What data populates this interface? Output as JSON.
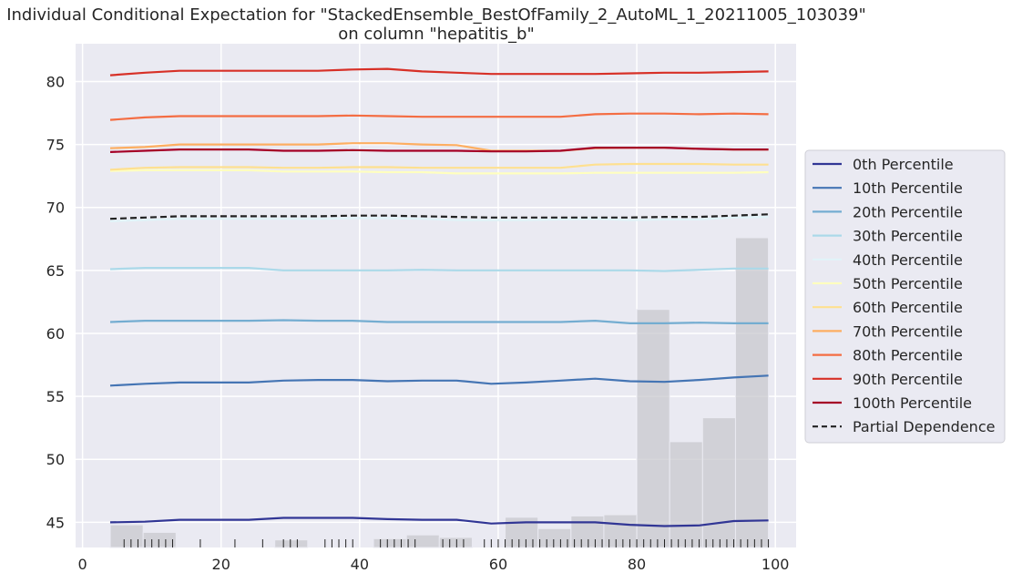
{
  "chart_data": {
    "type": "line",
    "title": "Individual Conditional Expectation for \"StackedEnsemble_BestOfFamily_2_AutoML_1_20211005_103039\"",
    "subtitle": "on column \"hepatitis_b\"",
    "xlim": [
      -1,
      103
    ],
    "ylim": [
      43,
      83
    ],
    "x_ticks": [
      0,
      20,
      40,
      60,
      80,
      100
    ],
    "y_ticks": [
      45,
      50,
      55,
      60,
      65,
      70,
      75,
      80
    ],
    "grid": true,
    "legend_position": "right",
    "background": "#eaeaf2",
    "x": [
      4,
      9,
      14,
      19,
      24,
      29,
      34,
      39,
      44,
      49,
      54,
      59,
      64,
      69,
      74,
      79,
      84,
      89,
      94,
      99
    ],
    "series": [
      {
        "name": "0th Percentile",
        "color": "#313695",
        "style": "solid",
        "values": [
          45.0,
          45.05,
          45.2,
          45.2,
          45.2,
          45.35,
          45.35,
          45.35,
          45.25,
          45.2,
          45.2,
          44.9,
          45.0,
          45.0,
          45.0,
          44.8,
          44.7,
          44.75,
          45.1,
          45.15
        ]
      },
      {
        "name": "10th Percentile",
        "color": "#4575b4",
        "style": "solid",
        "values": [
          55.85,
          56.0,
          56.1,
          56.1,
          56.1,
          56.25,
          56.3,
          56.3,
          56.2,
          56.25,
          56.25,
          56.0,
          56.1,
          56.25,
          56.4,
          56.2,
          56.15,
          56.3,
          56.5,
          56.65
        ]
      },
      {
        "name": "20th Percentile",
        "color": "#74add1",
        "style": "solid",
        "values": [
          60.9,
          61.0,
          61.0,
          61.0,
          61.0,
          61.05,
          61.0,
          61.0,
          60.9,
          60.9,
          60.9,
          60.9,
          60.9,
          60.9,
          61.0,
          60.8,
          60.8,
          60.85,
          60.8,
          60.8
        ]
      },
      {
        "name": "30th Percentile",
        "color": "#abd9e9",
        "style": "solid",
        "values": [
          65.1,
          65.2,
          65.2,
          65.2,
          65.2,
          65.0,
          65.0,
          65.0,
          65.0,
          65.05,
          65.0,
          65.0,
          65.0,
          65.0,
          65.0,
          65.0,
          64.95,
          65.05,
          65.15,
          65.15
        ]
      },
      {
        "name": "40th Percentile",
        "color": "#e0f3f8",
        "style": "solid",
        "values": [
          68.9,
          69.0,
          69.1,
          69.1,
          69.1,
          69.1,
          69.1,
          69.15,
          69.15,
          69.1,
          69.0,
          69.0,
          69.0,
          69.05,
          69.1,
          69.0,
          69.05,
          69.05,
          69.2,
          69.25
        ]
      },
      {
        "name": "50th Percentile",
        "color": "#ffffbf",
        "style": "solid",
        "values": [
          72.9,
          72.95,
          72.95,
          72.95,
          72.95,
          72.85,
          72.85,
          72.85,
          72.8,
          72.8,
          72.7,
          72.7,
          72.7,
          72.7,
          72.75,
          72.75,
          72.75,
          72.75,
          72.75,
          72.8
        ]
      },
      {
        "name": "60th Percentile",
        "color": "#fee090",
        "style": "solid",
        "values": [
          73.0,
          73.15,
          73.2,
          73.2,
          73.2,
          73.15,
          73.15,
          73.2,
          73.2,
          73.15,
          73.15,
          73.15,
          73.15,
          73.15,
          73.4,
          73.45,
          73.45,
          73.45,
          73.4,
          73.4
        ]
      },
      {
        "name": "70th Percentile",
        "color": "#fdae61",
        "style": "solid",
        "values": [
          74.7,
          74.8,
          75.0,
          75.0,
          75.0,
          75.0,
          75.0,
          75.1,
          75.1,
          75.0,
          74.95,
          74.5,
          74.5,
          74.5,
          74.7,
          74.75,
          74.75,
          74.65,
          74.6,
          74.6
        ]
      },
      {
        "name": "80th Percentile",
        "color": "#f46d43",
        "style": "solid",
        "values": [
          76.95,
          77.15,
          77.25,
          77.25,
          77.25,
          77.25,
          77.25,
          77.3,
          77.25,
          77.2,
          77.2,
          77.2,
          77.2,
          77.2,
          77.4,
          77.45,
          77.45,
          77.4,
          77.45,
          77.4
        ]
      },
      {
        "name": "90th Percentile",
        "color": "#d73027",
        "style": "solid",
        "values": [
          80.5,
          80.7,
          80.85,
          80.85,
          80.85,
          80.85,
          80.85,
          80.95,
          81.0,
          80.8,
          80.7,
          80.6,
          80.6,
          80.6,
          80.6,
          80.65,
          80.7,
          80.7,
          80.75,
          80.8
        ]
      },
      {
        "name": "100th Percentile",
        "color": "#a50026",
        "style": "solid",
        "values": [
          74.4,
          74.5,
          74.6,
          74.6,
          74.6,
          74.5,
          74.5,
          74.55,
          74.5,
          74.5,
          74.5,
          74.45,
          74.45,
          74.5,
          74.75,
          74.75,
          74.75,
          74.65,
          74.6,
          74.6
        ]
      },
      {
        "name": "Partial Dependence",
        "color": "#222222",
        "style": "dashed",
        "values": [
          69.1,
          69.2,
          69.3,
          69.3,
          69.3,
          69.3,
          69.3,
          69.35,
          69.35,
          69.3,
          69.25,
          69.2,
          69.2,
          69.2,
          69.2,
          69.2,
          69.25,
          69.25,
          69.35,
          69.45
        ]
      }
    ],
    "histogram": {
      "color": "#c8c8cd",
      "bins": [
        {
          "x0": 4,
          "x1": 8.75,
          "top": 44.8
        },
        {
          "x0": 8.75,
          "x1": 13.5,
          "top": 44.2
        },
        {
          "x0": 13.5,
          "x1": 18.25,
          "top": 43.0
        },
        {
          "x0": 27.75,
          "x1": 32.5,
          "top": 43.6
        },
        {
          "x0": 32.5,
          "x1": 37.25,
          "top": 43.0
        },
        {
          "x0": 37.25,
          "x1": 42.0,
          "top": 43.0
        },
        {
          "x0": 42.0,
          "x1": 46.75,
          "top": 43.7
        },
        {
          "x0": 46.75,
          "x1": 51.5,
          "top": 44.0
        },
        {
          "x0": 51.5,
          "x1": 56.25,
          "top": 43.8
        },
        {
          "x0": 56.25,
          "x1": 61.0,
          "top": 43.0
        },
        {
          "x0": 61.0,
          "x1": 65.75,
          "top": 45.4
        },
        {
          "x0": 65.75,
          "x1": 70.5,
          "top": 44.5
        },
        {
          "x0": 70.5,
          "x1": 75.25,
          "top": 45.5
        },
        {
          "x0": 75.25,
          "x1": 80.0,
          "top": 45.6
        },
        {
          "x0": 80.0,
          "x1": 84.75,
          "top": 61.9
        },
        {
          "x0": 84.75,
          "x1": 89.5,
          "top": 51.4
        },
        {
          "x0": 89.5,
          "x1": 94.25,
          "top": 53.3
        },
        {
          "x0": 94.25,
          "x1": 99.0,
          "top": 67.6
        }
      ]
    },
    "rug": [
      6,
      7,
      8,
      9,
      10,
      11,
      12,
      13,
      17,
      22,
      26,
      29,
      30,
      31,
      35,
      36,
      37,
      38,
      39,
      43,
      44,
      45,
      46,
      47,
      48,
      52,
      53,
      54,
      55,
      58,
      59,
      60,
      61,
      62,
      63,
      64,
      65,
      66,
      67,
      68,
      69,
      70,
      71,
      72,
      73,
      74,
      75,
      76,
      77,
      78,
      79,
      80,
      81,
      82,
      83,
      84,
      85,
      86,
      87,
      88,
      89,
      90,
      91,
      92,
      93,
      94,
      95,
      96,
      97,
      98,
      99
    ]
  }
}
